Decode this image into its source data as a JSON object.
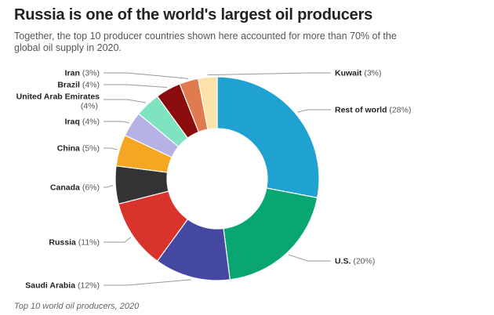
{
  "header": {
    "title": "Russia is one of the world's largest oil producers",
    "subtitle": "Together, the top 10 producer countries shown here accounted for more than 70% of the global oil supply in 2020."
  },
  "caption": "Top 10 world oil producers, 2020",
  "chart_data": {
    "type": "pie",
    "style": "donut",
    "unit": "%",
    "slices": [
      {
        "name": "Rest of world",
        "value": 28,
        "label": "(28%)",
        "color": "#1fa1d1"
      },
      {
        "name": "U.S.",
        "value": 20,
        "label": "(20%)",
        "color": "#0aa672"
      },
      {
        "name": "Saudi Arabia",
        "value": 12,
        "label": "(12%)",
        "color": "#4448a0"
      },
      {
        "name": "Russia",
        "value": 11,
        "label": "(11%)",
        "color": "#d9342b"
      },
      {
        "name": "Canada",
        "value": 6,
        "label": "(6%)",
        "color": "#333333"
      },
      {
        "name": "China",
        "value": 5,
        "label": "(5%)",
        "color": "#f5a623"
      },
      {
        "name": "Iraq",
        "value": 4,
        "label": "(4%)",
        "color": "#b7b2e6"
      },
      {
        "name": "United Arab Emirates",
        "value": 4,
        "label": "(4%)",
        "color": "#80e3c0"
      },
      {
        "name": "Brazil",
        "value": 4,
        "label": "(4%)",
        "color": "#8b0c0c"
      },
      {
        "name": "Iran",
        "value": 3,
        "label": "(3%)",
        "color": "#e07b4f"
      },
      {
        "name": "Kuwait",
        "value": 3,
        "label": "(3%)",
        "color": "#fbe2a9"
      }
    ]
  }
}
